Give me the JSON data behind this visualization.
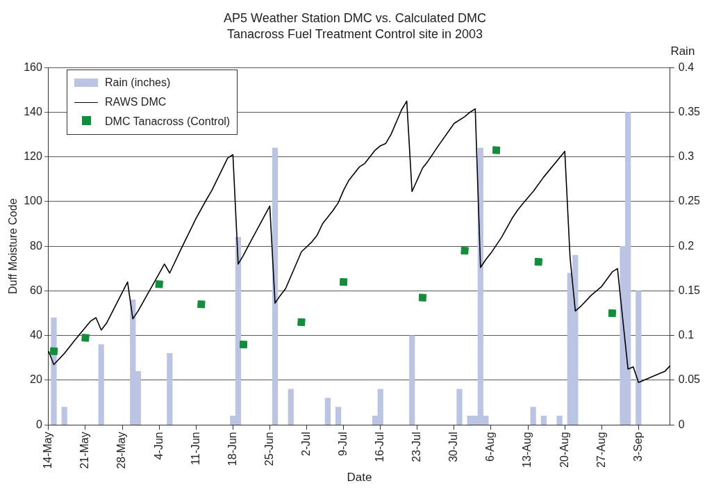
{
  "chart_data": {
    "type": "line",
    "title": "AP5 Weather Station DMC vs. Calculated DMC",
    "subtitle": "Tanacross Fuel Treatment Control site in 2003",
    "xlabel": "Date",
    "ylabel": "Duff Moisture Code",
    "y2label": "Rain",
    "categories": [
      "14-May",
      null,
      null,
      null,
      null,
      null,
      null,
      "21-May",
      null,
      null,
      null,
      null,
      null,
      null,
      "28-May",
      null,
      null,
      null,
      null,
      null,
      null,
      "4-Jun",
      null,
      null,
      null,
      null,
      null,
      null,
      "11-Jun",
      null,
      null,
      null,
      null,
      null,
      null,
      "18-Jun",
      null,
      null,
      null,
      null,
      null,
      null,
      "25-Jun",
      null,
      null,
      null,
      null,
      null,
      null,
      "2-Jul",
      null,
      null,
      null,
      null,
      null,
      null,
      "9-Jul",
      null,
      null,
      null,
      null,
      null,
      null,
      "16-Jul",
      null,
      null,
      null,
      null,
      null,
      null,
      "23-Jul",
      null,
      null,
      null,
      null,
      null,
      null,
      "30-Jul",
      null,
      null,
      null,
      null,
      null,
      null,
      "6-Aug",
      null,
      null,
      null,
      null,
      null,
      null,
      "13-Aug",
      null,
      null,
      null,
      null,
      null,
      null,
      "20-Aug",
      null,
      null,
      null,
      null,
      null,
      null,
      "27-Aug",
      null,
      null,
      null,
      null,
      null,
      null,
      "3-Sep",
      null,
      null,
      null,
      null,
      null,
      null
    ],
    "series": [
      {
        "name": "Rain (inches)",
        "type": "bar",
        "axis": "y2",
        "color": "#bcc4e4",
        "values": [
          null,
          0.12,
          null,
          0.02,
          null,
          null,
          null,
          null,
          null,
          null,
          0.09,
          null,
          null,
          null,
          null,
          null,
          0.14,
          0.06,
          null,
          null,
          null,
          null,
          null,
          0.08,
          null,
          null,
          null,
          null,
          null,
          null,
          null,
          null,
          null,
          null,
          null,
          0.01,
          0.21,
          null,
          null,
          null,
          null,
          null,
          null,
          0.31,
          null,
          null,
          0.04,
          null,
          null,
          null,
          null,
          null,
          null,
          0.03,
          null,
          0.02,
          null,
          null,
          null,
          null,
          null,
          null,
          0.01,
          0.04,
          null,
          null,
          null,
          null,
          null,
          0.1,
          null,
          null,
          null,
          null,
          null,
          null,
          null,
          null,
          0.04,
          null,
          0.01,
          0.01,
          0.31,
          0.01,
          null,
          null,
          null,
          null,
          null,
          null,
          null,
          null,
          0.02,
          null,
          0.01,
          null,
          null,
          0.01,
          null,
          0.17,
          0.19,
          null,
          null,
          null,
          null,
          null,
          null,
          null,
          null,
          0.2,
          0.35,
          null,
          0.15,
          null,
          null,
          null,
          null,
          null,
          null
        ]
      },
      {
        "name": "RAWS DMC",
        "color": "#000000",
        "marker": "none",
        "values": [
          33,
          27,
          null,
          32,
          null,
          38,
          null,
          null,
          46.5,
          48,
          42.5,
          45.5,
          null,
          null,
          null,
          64,
          47.5,
          51,
          null,
          null,
          null,
          null,
          72,
          68,
          null,
          78,
          null,
          null,
          92.5,
          null,
          101,
          105,
          null,
          null,
          119.5,
          121,
          72,
          76,
          80.5,
          null,
          null,
          null,
          98,
          54.5,
          58,
          61,
          null,
          null,
          77.5,
          null,
          82,
          85,
          90,
          null,
          96,
          99.5,
          105,
          109.5,
          null,
          115.5,
          117,
          null,
          123,
          125,
          126,
          130,
          null,
          141,
          145,
          104.5,
          null,
          115,
          118,
          121.5,
          125,
          null,
          null,
          135,
          null,
          138,
          140,
          141.5,
          70.5,
          74,
          77,
          null,
          84,
          null,
          92.5,
          96,
          99,
          null,
          104.5,
          null,
          111,
          null,
          null,
          null,
          122.5,
          75,
          51,
          53,
          null,
          58,
          null,
          62,
          null,
          68.5,
          70,
          null,
          25,
          26,
          19,
          20,
          null,
          22,
          23,
          24,
          26.5
        ]
      },
      {
        "name": "DMC Tanacross (Control)",
        "type": "scatter",
        "color": "#148c3c",
        "marker": "square",
        "values": [
          null,
          33,
          null,
          null,
          null,
          null,
          null,
          39,
          null,
          null,
          null,
          null,
          null,
          null,
          null,
          null,
          null,
          null,
          null,
          null,
          null,
          63,
          null,
          null,
          null,
          null,
          null,
          null,
          null,
          54,
          null,
          null,
          null,
          null,
          null,
          null,
          null,
          36,
          null,
          null,
          null,
          null,
          null,
          null,
          null,
          null,
          null,
          null,
          46,
          null,
          null,
          null,
          null,
          null,
          null,
          null,
          64,
          null,
          null,
          null,
          null,
          null,
          null,
          null,
          null,
          null,
          null,
          null,
          null,
          null,
          null,
          57,
          null,
          null,
          null,
          null,
          null,
          null,
          null,
          78,
          null,
          null,
          null,
          null,
          null,
          123,
          null,
          null,
          null,
          null,
          null,
          null,
          null,
          73,
          null,
          null,
          null,
          null,
          null,
          null,
          null,
          null,
          null,
          null,
          null,
          null,
          null,
          50,
          null,
          null,
          null,
          null,
          null,
          null,
          null,
          null,
          null,
          null,
          null
        ]
      }
    ],
    "ylim": [
      0,
      160
    ],
    "yticks": [
      0,
      20,
      40,
      60,
      80,
      100,
      120,
      140,
      160
    ],
    "y2lim": [
      0,
      0.4
    ],
    "y2ticks": [
      0,
      0.05,
      0.1,
      0.15,
      0.2,
      0.25,
      0.3,
      0.35,
      0.4
    ],
    "grid": "y",
    "legend": "top left"
  }
}
